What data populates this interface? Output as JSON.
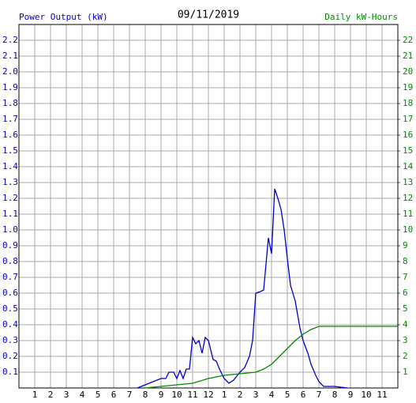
{
  "chart_data": {
    "type": "line",
    "title": "09/11/2019",
    "ylabel": "Power Output (kW)",
    "y2label": "Daily kW-Hours",
    "xlim": [
      0,
      24
    ],
    "xticks": [
      1,
      2,
      3,
      4,
      5,
      6,
      7,
      8,
      9,
      10,
      11,
      12,
      {
        "value": 13,
        "label": "1"
      },
      {
        "value": 14,
        "label": "2"
      },
      {
        "value": 15,
        "label": "3"
      },
      {
        "value": 16,
        "label": "4"
      },
      {
        "value": 17,
        "label": "5"
      },
      {
        "value": 18,
        "label": "6"
      },
      {
        "value": 19,
        "label": "7"
      },
      {
        "value": 20,
        "label": "8"
      },
      {
        "value": 21,
        "label": "9"
      },
      {
        "value": 22,
        "label": "10"
      },
      {
        "value": 23,
        "label": "11"
      }
    ],
    "ylim": [
      0,
      2.3
    ],
    "yticks": [
      0.1,
      0.2,
      0.3,
      0.4,
      0.5,
      0.6,
      0.7,
      0.8,
      0.9,
      {
        "value": 1,
        "label": "1.0"
      },
      1.1,
      1.2,
      1.3,
      1.4,
      1.5,
      1.6,
      1.7,
      1.8,
      1.9,
      {
        "value": 2,
        "label": "2.0"
      },
      2.1,
      2.2
    ],
    "y2lim": [
      0,
      23
    ],
    "y2ticks": [
      1,
      2,
      3,
      4,
      5,
      6,
      7,
      8,
      9,
      10,
      11,
      12,
      13,
      14,
      15,
      16,
      17,
      18,
      19,
      20,
      21,
      22
    ],
    "grid": true,
    "series": [
      {
        "color": "#0000cc",
        "x": [
          7.5,
          8,
          8.5,
          9,
          9.3,
          9.5,
          9.8,
          10,
          10.2,
          10.4,
          10.6,
          10.8,
          11,
          11.2,
          11.4,
          11.6,
          11.8,
          12,
          12.3,
          12.5,
          12.7,
          13,
          13.3,
          13.6,
          14,
          14.3,
          14.6,
          14.8,
          15,
          15.3,
          15.5,
          15.8,
          16,
          16.2,
          16.4,
          16.6,
          16.8,
          17,
          17.2,
          17.5,
          17.8,
          18,
          18.3,
          18.5,
          18.8,
          19,
          19.3,
          19.5,
          20,
          20.8
        ],
        "values": [
          0,
          0.02,
          0.04,
          0.06,
          0.06,
          0.1,
          0.1,
          0.06,
          0.11,
          0.06,
          0.12,
          0.12,
          0.32,
          0.28,
          0.3,
          0.22,
          0.32,
          0.3,
          0.18,
          0.17,
          0.12,
          0.06,
          0.03,
          0.05,
          0.1,
          0.13,
          0.2,
          0.3,
          0.6,
          0.61,
          0.62,
          0.95,
          0.85,
          1.26,
          1.2,
          1.13,
          1.0,
          0.82,
          0.65,
          0.55,
          0.38,
          0.3,
          0.22,
          0.15,
          0.08,
          0.04,
          0.01,
          0.01,
          0.01,
          0
        ]
      },
      {
        "color": "#008800",
        "axis": "y2",
        "x": [
          8,
          9,
          10,
          11,
          12,
          13,
          14,
          15,
          15.5,
          16,
          16.5,
          17,
          17.5,
          18,
          18.5,
          19,
          19.5,
          24
        ],
        "values": [
          0,
          0.1,
          0.2,
          0.3,
          0.6,
          0.8,
          0.9,
          1.0,
          1.2,
          1.5,
          2.0,
          2.5,
          3.0,
          3.4,
          3.7,
          3.9,
          3.9,
          3.9
        ]
      }
    ]
  }
}
